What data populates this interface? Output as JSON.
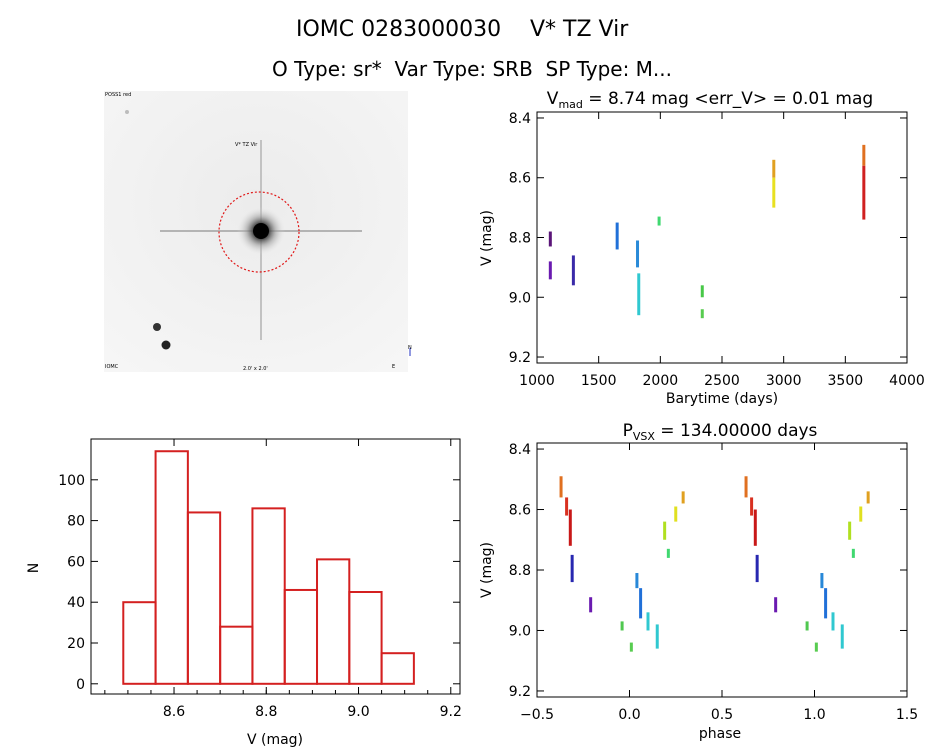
{
  "header": {
    "title_id": "IOMC 0283000030",
    "title_name": "V* TZ Vir",
    "subtitle": "O Type: sr*  Var Type: SRB  SP Type: M..."
  },
  "image_panel": {
    "marks": [
      "POSS1 red",
      "V* TZ Vir",
      "IOMC",
      "2.0' x 2.0'",
      "E",
      "N"
    ]
  },
  "chart_data": [
    {
      "type": "scatter",
      "title": "V_mad = 8.74 mag <err_V> = 0.01 mag",
      "title_parts": {
        "pre": "V",
        "sub": "mad",
        "post": " = 8.74 mag <err_V> = 0.01 mag"
      },
      "xlabel": "Barytime (days)",
      "ylabel": "V (mag)",
      "xlim": [
        1000,
        4000
      ],
      "ylim": [
        9.22,
        8.38
      ],
      "y_reversed": true,
      "xticks": [
        1000,
        1500,
        2000,
        2500,
        3000,
        3500,
        4000
      ],
      "yticks": [
        8.4,
        8.6,
        8.8,
        9.0,
        9.2
      ],
      "ytick_labels": [
        "8.4",
        "8.6",
        "8.8",
        "9.0",
        "9.2"
      ],
      "grid": false,
      "groups": [
        {
          "x": 1108,
          "y": [
            8.78,
            8.83
          ],
          "color": "#5a1578"
        },
        {
          "x": 1108,
          "y": [
            8.88,
            8.94
          ],
          "color": "#6a1ab0"
        },
        {
          "x": 1295,
          "y": [
            8.86,
            8.96
          ],
          "color": "#3a2aa8"
        },
        {
          "x": 1650,
          "y": [
            8.75,
            8.84
          ],
          "color": "#2070d8"
        },
        {
          "x": 1815,
          "y": [
            8.81,
            8.9
          ],
          "color": "#2a8ad8"
        },
        {
          "x": 1825,
          "y": [
            8.92,
            9.06
          ],
          "color": "#30c8d0"
        },
        {
          "x": 1990,
          "y": [
            8.73,
            8.76
          ],
          "color": "#40d870"
        },
        {
          "x": 2340,
          "y": [
            8.96,
            9.0
          ],
          "color": "#48c848"
        },
        {
          "x": 2340,
          "y": [
            9.04,
            9.07
          ],
          "color": "#58cc50"
        },
        {
          "x": 2920,
          "y": [
            8.54,
            8.6
          ],
          "color": "#e0a020"
        },
        {
          "x": 2920,
          "y": [
            8.6,
            8.7
          ],
          "color": "#e8e020"
        },
        {
          "x": 3650,
          "y": [
            8.49,
            8.56
          ],
          "color": "#e07020"
        },
        {
          "x": 3650,
          "y": [
            8.56,
            8.74
          ],
          "color": "#d02020"
        }
      ]
    },
    {
      "type": "bar",
      "title": "",
      "xlabel": "V (mag)",
      "ylabel": "N",
      "xlim": [
        8.42,
        9.22
      ],
      "ylim": [
        -5,
        120
      ],
      "xticks": [
        8.6,
        8.8,
        9.0,
        9.2
      ],
      "xtick_labels": [
        "8.6",
        "8.8",
        "9.0",
        "9.2"
      ],
      "yticks": [
        0,
        20,
        40,
        60,
        80,
        100
      ],
      "bin_edges": [
        8.49,
        8.56,
        8.63,
        8.7,
        8.77,
        8.84,
        8.91,
        8.98,
        9.05,
        9.12
      ],
      "values": [
        40,
        114,
        84,
        28,
        86,
        46,
        61,
        45,
        15
      ],
      "bar_color": "#d42020",
      "grid": false
    },
    {
      "type": "scatter",
      "title": "P_VSX = 134.00000 days",
      "title_parts": {
        "pre": "P",
        "sub": "VSX",
        "post": " = 134.00000 days"
      },
      "xlabel": "phase",
      "ylabel": "V (mag)",
      "xlim": [
        -0.5,
        1.5
      ],
      "ylim": [
        9.22,
        8.38
      ],
      "y_reversed": true,
      "xticks": [
        -0.5,
        0.0,
        0.5,
        1.0,
        1.5
      ],
      "xtick_labels": [
        "−0.5",
        "0.0",
        "0.5",
        "1.0",
        "1.5"
      ],
      "yticks": [
        8.4,
        8.6,
        8.8,
        9.0,
        9.2
      ],
      "ytick_labels": [
        "8.4",
        "8.6",
        "8.8",
        "9.0",
        "9.2"
      ],
      "grid": false,
      "groups": [
        {
          "x": -0.37,
          "y": [
            8.49,
            8.56
          ],
          "color": "#e07020"
        },
        {
          "x": -0.34,
          "y": [
            8.56,
            8.62
          ],
          "color": "#d83020"
        },
        {
          "x": -0.32,
          "y": [
            8.6,
            8.72
          ],
          "color": "#c81818"
        },
        {
          "x": -0.31,
          "y": [
            8.75,
            8.84
          ],
          "color": "#2828b0"
        },
        {
          "x": -0.21,
          "y": [
            8.89,
            8.94
          ],
          "color": "#6a1ab0"
        },
        {
          "x": -0.04,
          "y": [
            8.97,
            9.0
          ],
          "color": "#50c850"
        },
        {
          "x": 0.01,
          "y": [
            9.04,
            9.07
          ],
          "color": "#58cc50"
        },
        {
          "x": 0.04,
          "y": [
            8.81,
            8.86
          ],
          "color": "#2888d8"
        },
        {
          "x": 0.06,
          "y": [
            8.86,
            8.96
          ],
          "color": "#2070d8"
        },
        {
          "x": 0.1,
          "y": [
            8.94,
            9.0
          ],
          "color": "#30c8d0"
        },
        {
          "x": 0.15,
          "y": [
            8.98,
            9.06
          ],
          "color": "#30c8d0"
        },
        {
          "x": 0.19,
          "y": [
            8.64,
            8.7
          ],
          "color": "#b0e020"
        },
        {
          "x": 0.21,
          "y": [
            8.73,
            8.76
          ],
          "color": "#40d870"
        },
        {
          "x": 0.25,
          "y": [
            8.59,
            8.64
          ],
          "color": "#e0e020"
        },
        {
          "x": 0.29,
          "y": [
            8.54,
            8.58
          ],
          "color": "#e0a020"
        }
      ],
      "phase_repeat": 1.0
    }
  ]
}
